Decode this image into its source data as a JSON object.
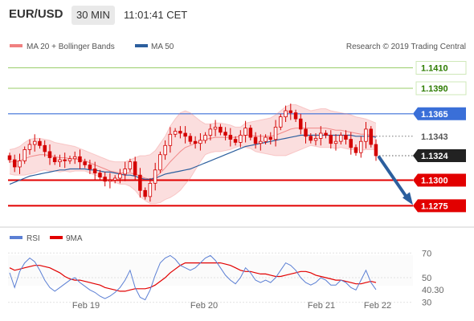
{
  "header": {
    "symbol": "EUR/USD",
    "timeframe": "30 MIN",
    "time": "11:01:41 CET"
  },
  "legend": {
    "bollinger": "MA 20 + Bollinger Bands",
    "ma50": "MA 50",
    "copyright": "Research © 2019 Trading Central",
    "rsi": "RSI",
    "rsi_ma": "9MA"
  },
  "colors": {
    "resistance": "#3a6fd8",
    "support": "#e20000",
    "target_line": "#9acd6a",
    "bollinger_fill": "#f9d3d3",
    "bollinger_line": "#f08080",
    "ma50": "#2c5f9e",
    "candles": "#d40000",
    "current_price_bg": "#222222",
    "arrow": "#2c5f9e",
    "rsi": "#5b7fd4",
    "rsi_ma": "#e20000"
  },
  "chart_data": [
    {
      "type": "candlestick",
      "series": [
        {
          "name": "MA 20 + Bollinger Bands"
        },
        {
          "name": "MA 50"
        }
      ],
      "y_range": [
        1.1258,
        1.1423
      ],
      "levels": [
        {
          "value": 1.141,
          "label": "1.1410",
          "kind": "target"
        },
        {
          "value": 1.139,
          "label": "1.1390",
          "kind": "target"
        },
        {
          "value": 1.1365,
          "label": "1.1365",
          "kind": "resistance"
        },
        {
          "value": 1.1343,
          "label": "1.1343",
          "kind": "reference"
        },
        {
          "value": 1.1324,
          "label": "1.1324",
          "kind": "current"
        },
        {
          "value": 1.13,
          "label": "1.1300",
          "kind": "support"
        },
        {
          "value": 1.1275,
          "label": "1.1275",
          "kind": "support"
        }
      ],
      "close": [
        1.132,
        1.1313,
        1.1319,
        1.133,
        1.1335,
        1.1338,
        1.1334,
        1.1328,
        1.1322,
        1.1318,
        1.132,
        1.1319,
        1.1321,
        1.1323,
        1.1318,
        1.1315,
        1.1311,
        1.1307,
        1.1303,
        1.1299,
        1.13,
        1.1302,
        1.1306,
        1.1311,
        1.1318,
        1.1305,
        1.129,
        1.1284,
        1.1297,
        1.131,
        1.1325,
        1.1334,
        1.1345,
        1.1348,
        1.1346,
        1.1343,
        1.1338,
        1.1336,
        1.1339,
        1.1344,
        1.135,
        1.1352,
        1.1347,
        1.1344,
        1.134,
        1.1337,
        1.1344,
        1.1351,
        1.1342,
        1.1336,
        1.1338,
        1.1342,
        1.134,
        1.1352,
        1.1362,
        1.1368,
        1.1366,
        1.136,
        1.135,
        1.1343,
        1.1339,
        1.1341,
        1.1346,
        1.1344,
        1.1336,
        1.1338,
        1.1344,
        1.134,
        1.1332,
        1.1327,
        1.1338,
        1.135,
        1.1335,
        1.1324
      ],
      "bb_upper": [
        1.133,
        1.1331,
        1.1333,
        1.1337,
        1.134,
        1.1341,
        1.1341,
        1.134,
        1.1339,
        1.1337,
        1.1336,
        1.1335,
        1.1334,
        1.1333,
        1.1331,
        1.1329,
        1.1327,
        1.1325,
        1.1323,
        1.1321,
        1.1319,
        1.1318,
        1.1318,
        1.1318,
        1.132,
        1.1322,
        1.1324,
        1.1324,
        1.1325,
        1.1329,
        1.1336,
        1.1343,
        1.1353,
        1.136,
        1.1366,
        1.1368,
        1.1366,
        1.1362,
        1.1358,
        1.1355,
        1.1355,
        1.1356,
        1.1356,
        1.1355,
        1.1354,
        1.1352,
        1.1352,
        1.1356,
        1.1357,
        1.1358,
        1.1359,
        1.136,
        1.1361,
        1.1364,
        1.1368,
        1.1372,
        1.1374,
        1.1374,
        1.1372,
        1.137,
        1.1368,
        1.1369,
        1.137,
        1.137,
        1.1368,
        1.1367,
        1.1366,
        1.1365,
        1.1364,
        1.1362,
        1.1361,
        1.136,
        1.1358,
        1.1356
      ],
      "bb_middle": [
        1.1318,
        1.1318,
        1.1319,
        1.1321,
        1.1323,
        1.1324,
        1.1325,
        1.1325,
        1.1324,
        1.1323,
        1.1322,
        1.1322,
        1.1321,
        1.1321,
        1.132,
        1.1319,
        1.1317,
        1.1315,
        1.1313,
        1.1311,
        1.1309,
        1.1308,
        1.1307,
        1.1307,
        1.1307,
        1.1306,
        1.1304,
        1.1302,
        1.1301,
        1.1303,
        1.1307,
        1.1312,
        1.1318,
        1.1323,
        1.1328,
        1.1332,
        1.1334,
        1.1336,
        1.1338,
        1.134,
        1.1341,
        1.1342,
        1.1342,
        1.1342,
        1.1342,
        1.1342,
        1.1343,
        1.1344,
        1.1344,
        1.1343,
        1.1343,
        1.1343,
        1.1343,
        1.1344,
        1.1346,
        1.1348,
        1.135,
        1.1351,
        1.1351,
        1.1351,
        1.1351,
        1.1351,
        1.1351,
        1.1351,
        1.135,
        1.1349,
        1.1349,
        1.1348,
        1.1347,
        1.1346,
        1.1345,
        1.1345,
        1.1344,
        1.1343
      ],
      "bb_lower": [
        1.1306,
        1.1305,
        1.1305,
        1.1305,
        1.1306,
        1.1307,
        1.1309,
        1.131,
        1.1309,
        1.1309,
        1.1308,
        1.1309,
        1.1308,
        1.1309,
        1.1309,
        1.1309,
        1.1307,
        1.1305,
        1.1303,
        1.1301,
        1.1299,
        1.1298,
        1.1296,
        1.1296,
        1.1294,
        1.129,
        1.1284,
        1.128,
        1.1277,
        1.1277,
        1.1278,
        1.1281,
        1.1283,
        1.1286,
        1.129,
        1.1296,
        1.1302,
        1.131,
        1.1318,
        1.1325,
        1.1327,
        1.1328,
        1.1328,
        1.1329,
        1.133,
        1.1332,
        1.1334,
        1.1332,
        1.1331,
        1.1328,
        1.1327,
        1.1326,
        1.1325,
        1.1324,
        1.1324,
        1.1324,
        1.1326,
        1.1328,
        1.133,
        1.1332,
        1.1334,
        1.1333,
        1.1332,
        1.1332,
        1.1332,
        1.1331,
        1.1332,
        1.1331,
        1.133,
        1.133,
        1.1329,
        1.133,
        1.133,
        1.133
      ],
      "ma50": [
        1.1296,
        1.1298,
        1.13,
        1.1302,
        1.1304,
        1.1305,
        1.1306,
        1.1307,
        1.1308,
        1.1309,
        1.131,
        1.131,
        1.1311,
        1.1311,
        1.1311,
        1.1311,
        1.131,
        1.131,
        1.1309,
        1.1308,
        1.1308,
        1.1307,
        1.1306,
        1.1305,
        1.1305,
        1.1304,
        1.1302,
        1.1301,
        1.1301,
        1.1302,
        1.1304,
        1.1306,
        1.1307,
        1.1308,
        1.1309,
        1.131,
        1.1311,
        1.1313,
        1.1315,
        1.1317,
        1.1319,
        1.1321,
        1.1323,
        1.1325,
        1.1327,
        1.1329,
        1.1331,
        1.1333,
        1.1334,
        1.1335,
        1.1336,
        1.1337,
        1.1338,
        1.1339,
        1.134,
        1.1341,
        1.1342,
        1.1343,
        1.1344,
        1.1344,
        1.1344,
        1.1344,
        1.1344,
        1.1344,
        1.1344,
        1.1344,
        1.1344,
        1.1344,
        1.1344,
        1.1343,
        1.1343,
        1.1343,
        1.1343,
        1.1342
      ],
      "projection": {
        "from": 1.1324,
        "to": 1.1275
      }
    },
    {
      "type": "line",
      "x_labels": [
        "Feb 19",
        "Feb 20",
        "Feb 21",
        "Feb 22"
      ],
      "y_ticks": [
        "70",
        "50",
        "30"
      ],
      "y_range": [
        20,
        80
      ],
      "current_value_label": "40.30",
      "series": [
        {
          "name": "RSI",
          "values": [
            54,
            42,
            55,
            62,
            66,
            63,
            56,
            48,
            42,
            39,
            42,
            45,
            48,
            50,
            46,
            43,
            40,
            38,
            35,
            33,
            35,
            38,
            42,
            48,
            56,
            42,
            34,
            32,
            40,
            52,
            62,
            66,
            68,
            65,
            60,
            58,
            56,
            58,
            62,
            66,
            68,
            64,
            58,
            52,
            48,
            45,
            50,
            58,
            54,
            48,
            46,
            48,
            46,
            50,
            56,
            62,
            60,
            56,
            50,
            46,
            44,
            46,
            50,
            48,
            44,
            44,
            48,
            46,
            42,
            40,
            48,
            56,
            46,
            40.3
          ]
        },
        {
          "name": "9MA",
          "values": [
            58,
            56,
            57,
            58,
            59,
            60,
            60,
            59,
            58,
            56,
            54,
            51,
            49,
            48,
            48,
            47,
            46,
            45,
            44,
            42,
            41,
            40,
            39,
            39,
            40,
            41,
            41,
            41,
            42,
            44,
            47,
            50,
            54,
            57,
            60,
            62,
            62,
            62,
            62,
            62,
            62,
            62,
            62,
            61,
            60,
            58,
            56,
            55,
            55,
            54,
            53,
            53,
            52,
            51,
            51,
            52,
            53,
            54,
            55,
            55,
            54,
            52,
            51,
            50,
            49,
            48,
            48,
            47,
            46,
            45,
            45,
            46,
            47,
            46
          ]
        }
      ]
    }
  ]
}
